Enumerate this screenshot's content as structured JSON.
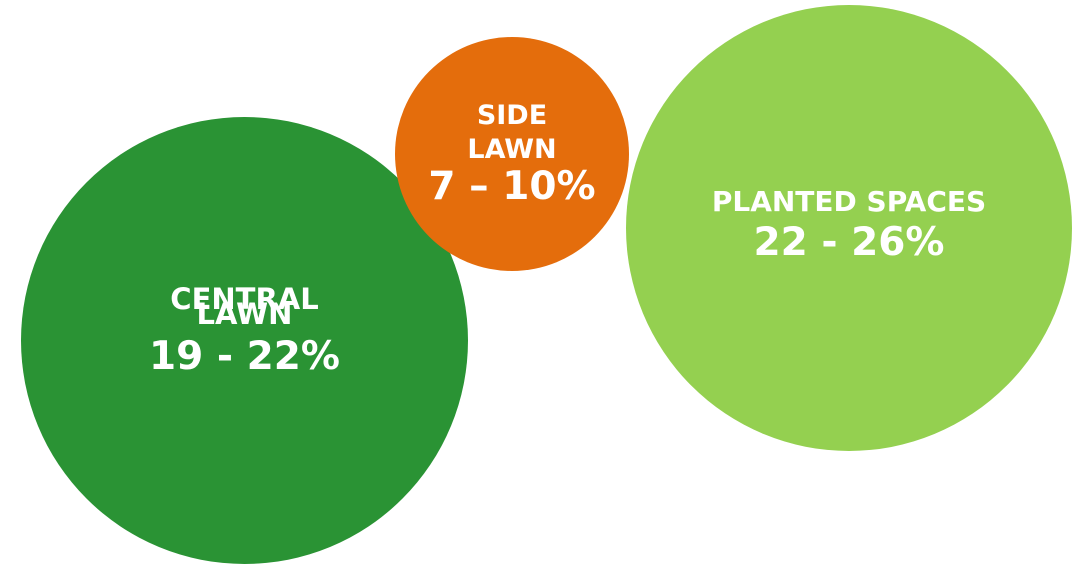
{
  "bubbles": {
    "central": {
      "label_line1": "CENTRAL",
      "label_line2": "LAWN",
      "value": "19 - 22%",
      "color": "#2a9334"
    },
    "side": {
      "label_line1": "SIDE",
      "label_line2": "LAWN",
      "value": "7 – 10%",
      "color": "#e46d0c"
    },
    "planted": {
      "label_line1": "PLANTED SPACES",
      "value": "22 - 26%",
      "color": "#94d050"
    }
  }
}
